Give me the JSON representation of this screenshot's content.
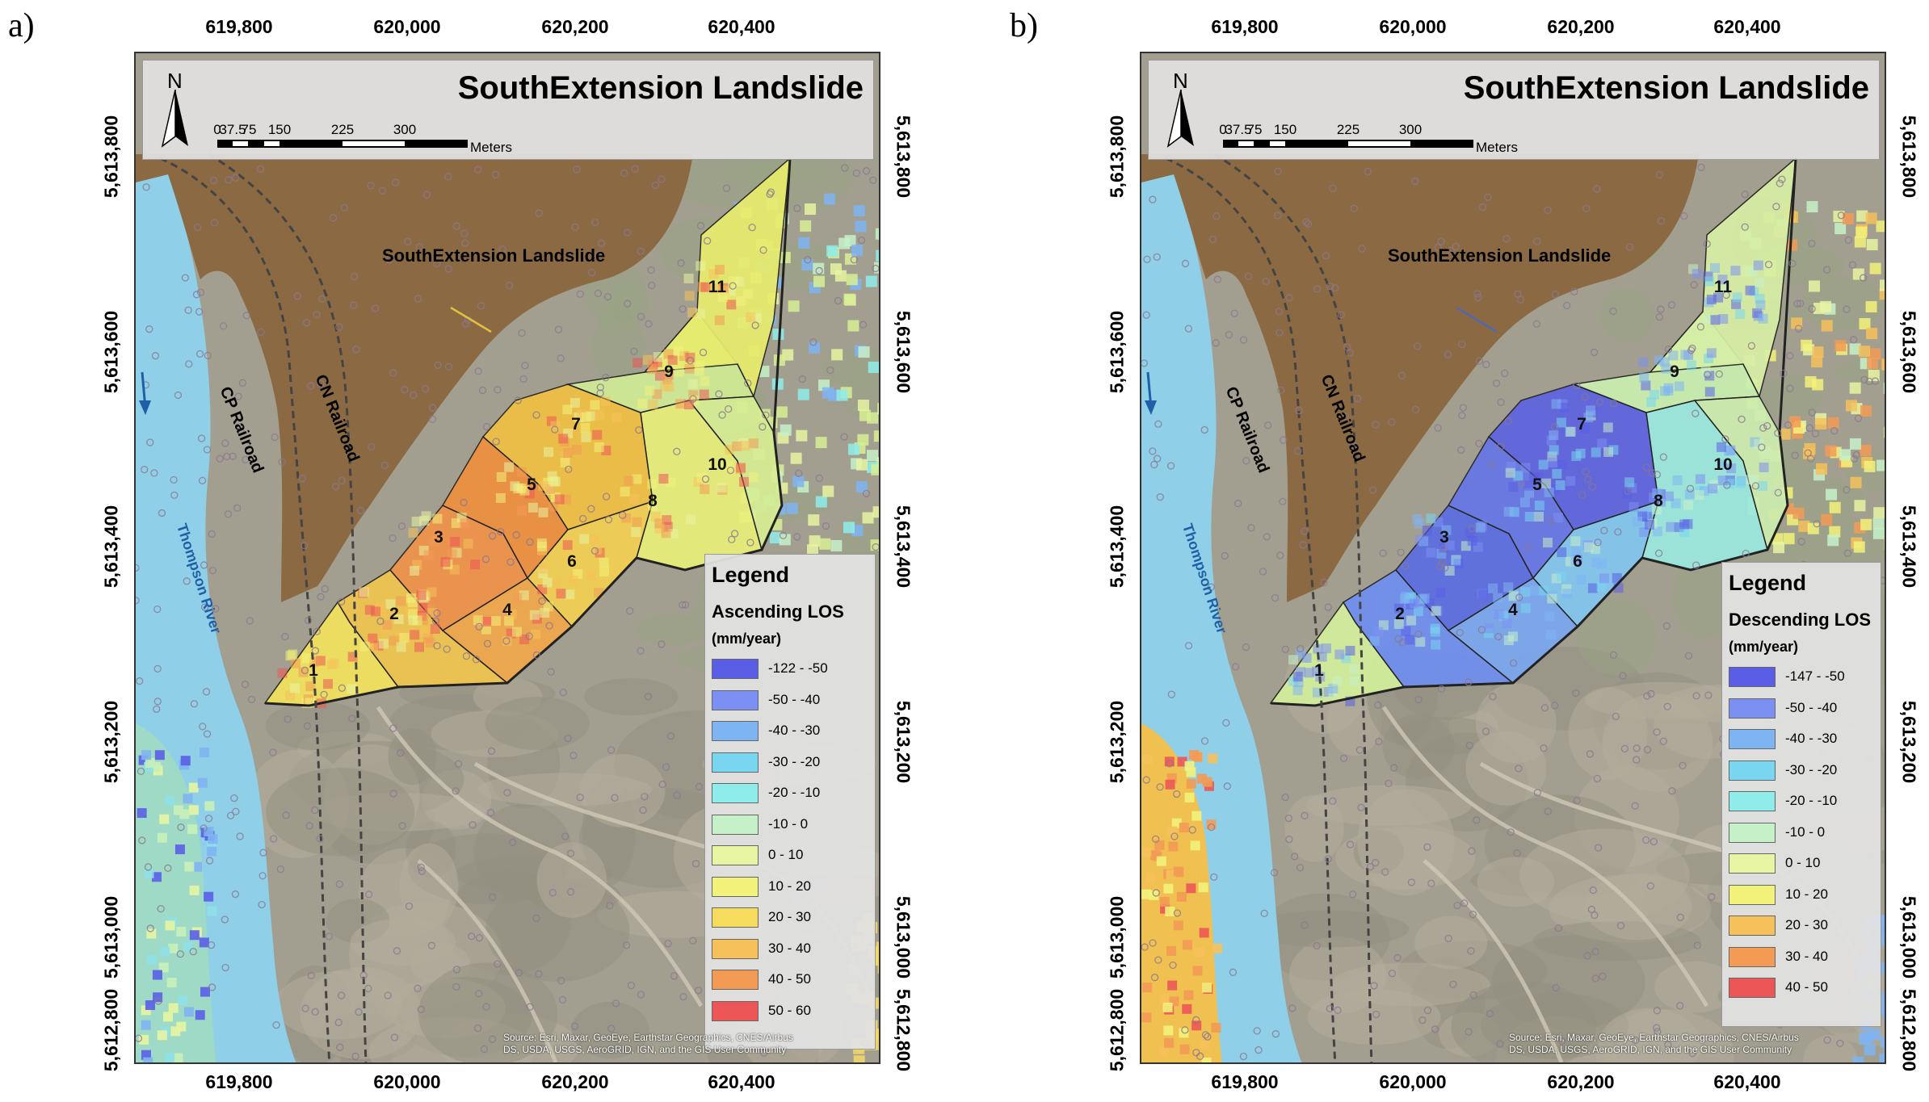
{
  "panels": [
    {
      "label": "a)",
      "title": "SouthExtension Landslide",
      "landslide_label": "SouthExtension Landslide",
      "cp_label": "CP Railroad",
      "cn_label": "CN Railroad",
      "river_label": "Thompson River",
      "legend": {
        "title": "Legend",
        "subtitle": "Ascending LOS",
        "unit": "(mm/year)",
        "classes": [
          {
            "label": "-122 - -50",
            "color": "#5a5ee6"
          },
          {
            "label": "-50 - -40",
            "color": "#7c8ff2"
          },
          {
            "label": "-40 - -30",
            "color": "#7fb4f2"
          },
          {
            "label": "-30 - -20",
            "color": "#78d6f0"
          },
          {
            "label": "-20 - -10",
            "color": "#8eedea"
          },
          {
            "label": "-10 - 0",
            "color": "#c6f1c8"
          },
          {
            "label": "0 - 10",
            "color": "#e7f4a1"
          },
          {
            "label": "10 - 20",
            "color": "#f2f27a"
          },
          {
            "label": "20 - 30",
            "color": "#f5dc5c"
          },
          {
            "label": "30 - 40",
            "color": "#f6c15a"
          },
          {
            "label": "40 - 50",
            "color": "#f39a55"
          },
          {
            "label": "50 - 60",
            "color": "#ec5656"
          }
        ]
      },
      "zone_colors": [
        "#f3e35c",
        "#f1c64e",
        "#f0934a",
        "#f2a84a",
        "#ee8f3e",
        "#f3d052",
        "#f1c044",
        "#e9ef7a",
        "#cfeb95",
        "#d8ee93",
        "#e8ec6c"
      ]
    },
    {
      "label": "b)",
      "title": "SouthExtension Landslide",
      "landslide_label": "SouthExtension Landslide",
      "cp_label": "CP Railroad",
      "cn_label": "CN Railroad",
      "river_label": "Thompson River",
      "legend": {
        "title": "Legend",
        "subtitle": "Descending LOS",
        "unit": "(mm/year)",
        "classes": [
          {
            "label": "-147 - -50",
            "color": "#5a5ee6"
          },
          {
            "label": "-50 - -40",
            "color": "#7c8ff2"
          },
          {
            "label": "-40 - -30",
            "color": "#7fb4f2"
          },
          {
            "label": "-30 - -20",
            "color": "#78d6f0"
          },
          {
            "label": "-20 - -10",
            "color": "#8eedea"
          },
          {
            "label": "-10 - 0",
            "color": "#c6f1c8"
          },
          {
            "label": "0 - 10",
            "color": "#e7f4a1"
          },
          {
            "label": "10 - 20",
            "color": "#f2f27a"
          },
          {
            "label": "20 - 30",
            "color": "#f6c15a"
          },
          {
            "label": "30 - 40",
            "color": "#f39a55"
          },
          {
            "label": "40 - 50",
            "color": "#ec5656"
          }
        ]
      },
      "zone_colors": [
        "#d3ef9c",
        "#6f8ff0",
        "#5c6ee2",
        "#7aa7f0",
        "#6676e6",
        "#82c6f0",
        "#5d63e0",
        "#9be9e0",
        "#c9efb0",
        "#cdedb0",
        "#d7efa5"
      ]
    }
  ],
  "axes": {
    "x_ticks": [
      "619,800",
      "620,000",
      "620,200",
      "620,400"
    ],
    "y_ticks": [
      "5,613,800",
      "5,613,600",
      "5,613,400",
      "5,613,200",
      "5,613,000",
      "5,612,800"
    ]
  },
  "scale_bar": {
    "labels": [
      "0",
      "37.5",
      "75",
      "150",
      "225",
      "300"
    ],
    "unit": "Meters"
  },
  "north_arrow": {
    "letter": "N",
    "icon": "north-arrow-icon"
  },
  "zones": [
    "1",
    "2",
    "3",
    "4",
    "5",
    "6",
    "7",
    "8",
    "9",
    "10",
    "11"
  ],
  "attribution": [
    "Source: Esri, Maxar, GeoEye, Earthstar Geographics, CNES/Airbus",
    "DS, USDA, USGS, AeroGRID, IGN, and the GIS User Community"
  ],
  "colors": {
    "water": "#8fcfe8",
    "terrain": "#a39f90",
    "landslide_mask": "#8b6a43",
    "frame": "#333333"
  }
}
